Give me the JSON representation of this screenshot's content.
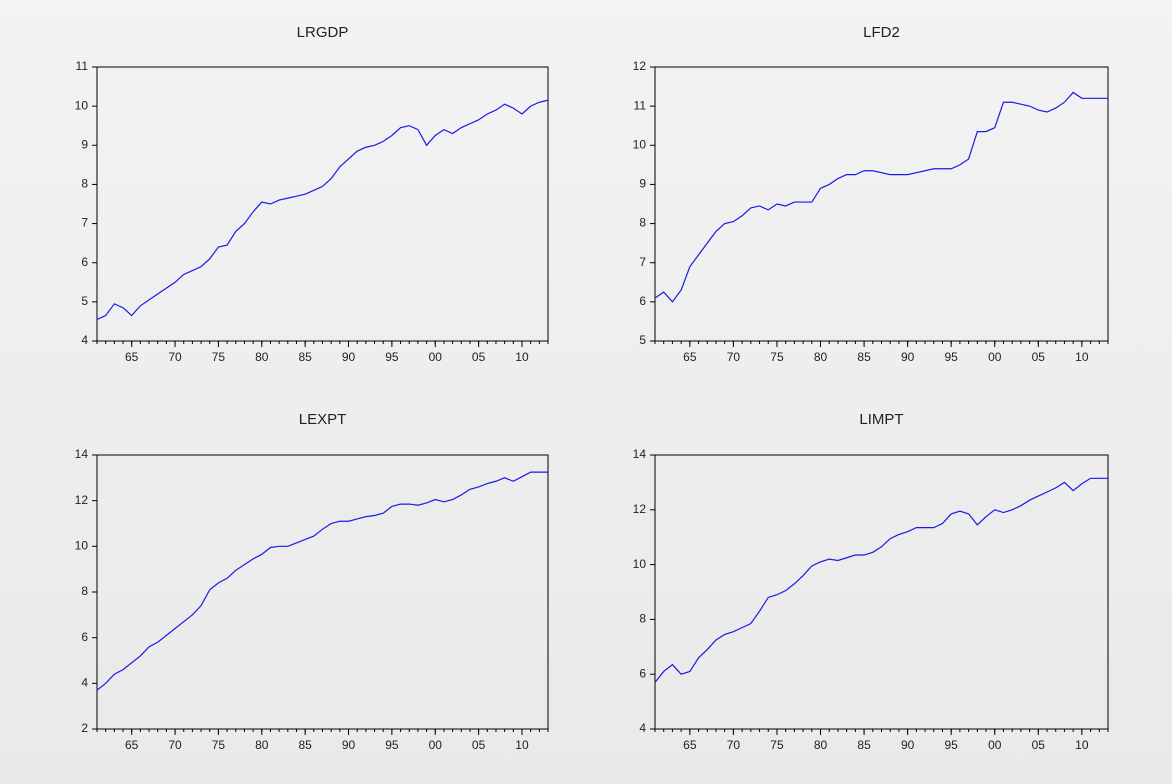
{
  "chart_data": [
    {
      "type": "line",
      "title": "LRGDP",
      "color": "#1a1ae6",
      "x": [
        1961,
        1962,
        1963,
        1964,
        1965,
        1966,
        1967,
        1968,
        1969,
        1970,
        1971,
        1972,
        1973,
        1974,
        1975,
        1976,
        1977,
        1978,
        1979,
        1980,
        1981,
        1982,
        1983,
        1984,
        1985,
        1986,
        1987,
        1988,
        1989,
        1990,
        1991,
        1992,
        1993,
        1994,
        1995,
        1996,
        1997,
        1998,
        1999,
        2000,
        2001,
        2002,
        2003,
        2004,
        2005,
        2006,
        2007,
        2008,
        2009,
        2010,
        2011,
        2012,
        2013
      ],
      "values": [
        4.55,
        4.65,
        4.95,
        4.85,
        4.65,
        4.9,
        5.05,
        5.2,
        5.35,
        5.5,
        5.7,
        5.8,
        5.9,
        6.1,
        6.4,
        6.45,
        6.8,
        7.0,
        7.3,
        7.55,
        7.5,
        7.6,
        7.65,
        7.7,
        7.75,
        7.85,
        7.95,
        8.15,
        8.45,
        8.65,
        8.85,
        8.95,
        9.0,
        9.1,
        9.25,
        9.45,
        9.5,
        9.4,
        9.0,
        9.25,
        9.4,
        9.3,
        9.45,
        9.55,
        9.65,
        9.8,
        9.9,
        10.05,
        9.95,
        9.8,
        10.0,
        10.1,
        10.15
      ],
      "xlim": [
        1961,
        2013
      ],
      "ylim": [
        4,
        11
      ],
      "xticks": [
        {
          "value": 1965,
          "label": "65"
        },
        {
          "value": 1970,
          "label": "70"
        },
        {
          "value": 1975,
          "label": "75"
        },
        {
          "value": 1980,
          "label": "80"
        },
        {
          "value": 1985,
          "label": "85"
        },
        {
          "value": 1990,
          "label": "90"
        },
        {
          "value": 1995,
          "label": "95"
        },
        {
          "value": 2000,
          "label": "00"
        },
        {
          "value": 2005,
          "label": "05"
        },
        {
          "value": 2010,
          "label": "10"
        }
      ],
      "yticks": [
        4,
        5,
        6,
        7,
        8,
        9,
        10,
        11
      ]
    },
    {
      "type": "line",
      "title": "LFD2",
      "color": "#1a1ae6",
      "x": [
        1961,
        1962,
        1963,
        1964,
        1965,
        1966,
        1967,
        1968,
        1969,
        1970,
        1971,
        1972,
        1973,
        1974,
        1975,
        1976,
        1977,
        1978,
        1979,
        1980,
        1981,
        1982,
        1983,
        1984,
        1985,
        1986,
        1987,
        1988,
        1989,
        1990,
        1991,
        1992,
        1993,
        1994,
        1995,
        1996,
        1997,
        1998,
        1999,
        2000,
        2001,
        2002,
        2003,
        2004,
        2005,
        2006,
        2007,
        2008,
        2009,
        2010,
        2011,
        2012,
        2013
      ],
      "values": [
        6.1,
        6.25,
        6.0,
        6.3,
        6.9,
        7.2,
        7.5,
        7.8,
        8.0,
        8.05,
        8.2,
        8.4,
        8.45,
        8.35,
        8.5,
        8.45,
        8.55,
        8.55,
        8.55,
        8.9,
        9.0,
        9.15,
        9.25,
        9.25,
        9.35,
        9.35,
        9.3,
        9.25,
        9.25,
        9.25,
        9.3,
        9.35,
        9.4,
        9.4,
        9.4,
        9.5,
        9.65,
        10.35,
        10.35,
        10.45,
        11.1,
        11.1,
        11.05,
        11.0,
        10.9,
        10.85,
        10.95,
        11.1,
        11.35,
        11.2,
        11.2,
        11.2,
        11.2
      ],
      "xlim": [
        1961,
        2013
      ],
      "ylim": [
        5,
        12
      ],
      "xticks": [
        {
          "value": 1965,
          "label": "65"
        },
        {
          "value": 1970,
          "label": "70"
        },
        {
          "value": 1975,
          "label": "75"
        },
        {
          "value": 1980,
          "label": "80"
        },
        {
          "value": 1985,
          "label": "85"
        },
        {
          "value": 1990,
          "label": "90"
        },
        {
          "value": 1995,
          "label": "95"
        },
        {
          "value": 2000,
          "label": "00"
        },
        {
          "value": 2005,
          "label": "05"
        },
        {
          "value": 2010,
          "label": "10"
        }
      ],
      "yticks": [
        5,
        6,
        7,
        8,
        9,
        10,
        11,
        12
      ]
    },
    {
      "type": "line",
      "title": "LEXPT",
      "color": "#1a1ae6",
      "x": [
        1961,
        1962,
        1963,
        1964,
        1965,
        1966,
        1967,
        1968,
        1969,
        1970,
        1971,
        1972,
        1973,
        1974,
        1975,
        1976,
        1977,
        1978,
        1979,
        1980,
        1981,
        1982,
        1983,
        1984,
        1985,
        1986,
        1987,
        1988,
        1989,
        1990,
        1991,
        1992,
        1993,
        1994,
        1995,
        1996,
        1997,
        1998,
        1999,
        2000,
        2001,
        2002,
        2003,
        2004,
        2005,
        2006,
        2007,
        2008,
        2009,
        2010,
        2011,
        2012,
        2013
      ],
      "values": [
        3.7,
        4.0,
        4.4,
        4.6,
        4.9,
        5.2,
        5.6,
        5.8,
        6.1,
        6.4,
        6.7,
        7.0,
        7.4,
        8.1,
        8.4,
        8.6,
        8.95,
        9.2,
        9.45,
        9.65,
        9.95,
        10.0,
        10.0,
        10.15,
        10.3,
        10.45,
        10.75,
        11.0,
        11.1,
        11.1,
        11.2,
        11.3,
        11.35,
        11.45,
        11.75,
        11.85,
        11.85,
        11.8,
        11.9,
        12.05,
        11.95,
        12.05,
        12.25,
        12.5,
        12.6,
        12.75,
        12.85,
        13.0,
        12.85,
        13.05,
        13.25,
        13.25,
        13.25
      ],
      "xlim": [
        1961,
        2013
      ],
      "ylim": [
        2,
        14
      ],
      "xticks": [
        {
          "value": 1965,
          "label": "65"
        },
        {
          "value": 1970,
          "label": "70"
        },
        {
          "value": 1975,
          "label": "75"
        },
        {
          "value": 1980,
          "label": "80"
        },
        {
          "value": 1985,
          "label": "85"
        },
        {
          "value": 1990,
          "label": "90"
        },
        {
          "value": 1995,
          "label": "95"
        },
        {
          "value": 2000,
          "label": "00"
        },
        {
          "value": 2005,
          "label": "05"
        },
        {
          "value": 2010,
          "label": "10"
        }
      ],
      "yticks": [
        2,
        4,
        6,
        8,
        10,
        12,
        14
      ]
    },
    {
      "type": "line",
      "title": "LIMPT",
      "color": "#1a1ae6",
      "x": [
        1961,
        1962,
        1963,
        1964,
        1965,
        1966,
        1967,
        1968,
        1969,
        1970,
        1971,
        1972,
        1973,
        1974,
        1975,
        1976,
        1977,
        1978,
        1979,
        1980,
        1981,
        1982,
        1983,
        1984,
        1985,
        1986,
        1987,
        1988,
        1989,
        1990,
        1991,
        1992,
        1993,
        1994,
        1995,
        1996,
        1997,
        1998,
        1999,
        2000,
        2001,
        2002,
        2003,
        2004,
        2005,
        2006,
        2007,
        2008,
        2009,
        2010,
        2011,
        2012,
        2013
      ],
      "values": [
        5.7,
        6.1,
        6.35,
        6.0,
        6.1,
        6.6,
        6.9,
        7.25,
        7.45,
        7.55,
        7.7,
        7.85,
        8.3,
        8.8,
        8.9,
        9.05,
        9.3,
        9.6,
        9.95,
        10.1,
        10.2,
        10.15,
        10.25,
        10.35,
        10.35,
        10.45,
        10.65,
        10.95,
        11.1,
        11.2,
        11.35,
        11.35,
        11.35,
        11.5,
        11.85,
        11.95,
        11.85,
        11.45,
        11.75,
        12.0,
        11.9,
        12.0,
        12.15,
        12.35,
        12.5,
        12.65,
        12.8,
        13.0,
        12.7,
        12.95,
        13.15,
        13.15,
        13.15
      ],
      "xlim": [
        1961,
        2013
      ],
      "ylim": [
        4,
        14
      ],
      "xticks": [
        {
          "value": 1965,
          "label": "65"
        },
        {
          "value": 1970,
          "label": "70"
        },
        {
          "value": 1975,
          "label": "75"
        },
        {
          "value": 1980,
          "label": "80"
        },
        {
          "value": 1985,
          "label": "85"
        },
        {
          "value": 1990,
          "label": "90"
        },
        {
          "value": 1995,
          "label": "95"
        },
        {
          "value": 2000,
          "label": "00"
        },
        {
          "value": 2005,
          "label": "05"
        },
        {
          "value": 2010,
          "label": "10"
        }
      ],
      "yticks": [
        4,
        6,
        8,
        10,
        12,
        14
      ]
    }
  ]
}
